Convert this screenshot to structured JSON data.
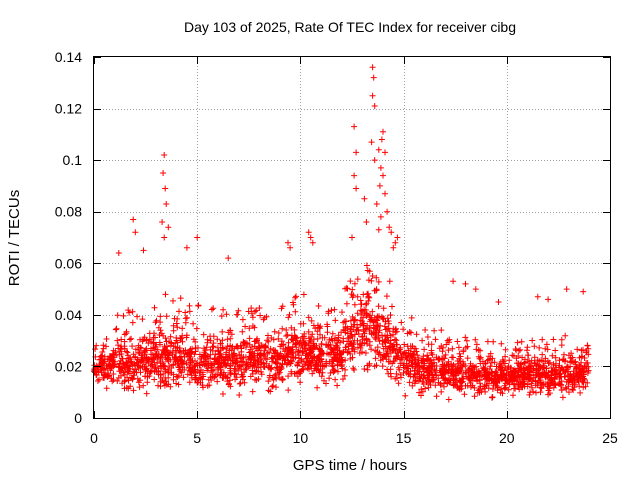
{
  "chart_data": {
    "type": "scatter",
    "title": "Day 103 of 2025, Rate Of TEC Index for receiver cibg",
    "xlabel": "GPS time / hours",
    "ylabel": "ROTI / TECUs",
    "xlim": [
      0,
      25
    ],
    "ylim": [
      0,
      0.14
    ],
    "x_ticks": [
      0,
      5,
      10,
      15,
      20,
      25
    ],
    "x_tick_labels": [
      "0",
      "5",
      "10",
      "15",
      "20",
      "25"
    ],
    "y_ticks": [
      0,
      0.02,
      0.04,
      0.06,
      0.08,
      0.1,
      0.12,
      0.14
    ],
    "y_tick_labels": [
      "0",
      "0.02",
      "0.04",
      "0.06",
      "0.08",
      "0.1",
      "0.12",
      "0.14"
    ],
    "grid": true,
    "marker": "+",
    "marker_color": "#ff0000",
    "x_range_of_data": [
      0,
      24
    ],
    "envelope": {
      "x": [
        0,
        1,
        2,
        3,
        4,
        5,
        6,
        7,
        8,
        9,
        10,
        11,
        12,
        13,
        14,
        15,
        16,
        17,
        18,
        19,
        20,
        21,
        22,
        23,
        24
      ],
      "low": [
        0.01,
        0.008,
        0.007,
        0.007,
        0.008,
        0.008,
        0.007,
        0.007,
        0.008,
        0.009,
        0.009,
        0.01,
        0.01,
        0.012,
        0.01,
        0.008,
        0.007,
        0.006,
        0.006,
        0.006,
        0.006,
        0.006,
        0.006,
        0.006,
        0.007
      ],
      "mid": [
        0.018,
        0.02,
        0.02,
        0.021,
        0.022,
        0.02,
        0.022,
        0.022,
        0.022,
        0.023,
        0.024,
        0.024,
        0.025,
        0.035,
        0.03,
        0.022,
        0.018,
        0.017,
        0.016,
        0.016,
        0.016,
        0.016,
        0.016,
        0.016,
        0.018
      ],
      "high": [
        0.03,
        0.04,
        0.045,
        0.05,
        0.048,
        0.045,
        0.042,
        0.042,
        0.045,
        0.045,
        0.05,
        0.045,
        0.05,
        0.06,
        0.06,
        0.045,
        0.035,
        0.035,
        0.032,
        0.03,
        0.03,
        0.03,
        0.032,
        0.032,
        0.03
      ]
    },
    "notable_points": [
      {
        "x": 1.9,
        "y": 0.077
      },
      {
        "x": 2.0,
        "y": 0.072
      },
      {
        "x": 3.4,
        "y": 0.102
      },
      {
        "x": 3.35,
        "y": 0.095
      },
      {
        "x": 3.45,
        "y": 0.089
      },
      {
        "x": 3.5,
        "y": 0.083
      },
      {
        "x": 3.3,
        "y": 0.076
      },
      {
        "x": 3.4,
        "y": 0.07
      },
      {
        "x": 3.6,
        "y": 0.074
      },
      {
        "x": 5.0,
        "y": 0.07
      },
      {
        "x": 2.4,
        "y": 0.065
      },
      {
        "x": 1.2,
        "y": 0.064
      },
      {
        "x": 4.5,
        "y": 0.066
      },
      {
        "x": 6.5,
        "y": 0.062
      },
      {
        "x": 9.4,
        "y": 0.068
      },
      {
        "x": 9.5,
        "y": 0.066
      },
      {
        "x": 10.4,
        "y": 0.072
      },
      {
        "x": 10.5,
        "y": 0.07
      },
      {
        "x": 10.6,
        "y": 0.068
      },
      {
        "x": 12.6,
        "y": 0.113
      },
      {
        "x": 12.7,
        "y": 0.103
      },
      {
        "x": 12.6,
        "y": 0.094
      },
      {
        "x": 12.7,
        "y": 0.089
      },
      {
        "x": 12.5,
        "y": 0.07
      },
      {
        "x": 13.1,
        "y": 0.085
      },
      {
        "x": 13.2,
        "y": 0.076
      },
      {
        "x": 13.5,
        "y": 0.136
      },
      {
        "x": 13.55,
        "y": 0.132
      },
      {
        "x": 13.5,
        "y": 0.125
      },
      {
        "x": 13.6,
        "y": 0.121
      },
      {
        "x": 13.45,
        "y": 0.107
      },
      {
        "x": 13.6,
        "y": 0.1
      },
      {
        "x": 13.8,
        "y": 0.104
      },
      {
        "x": 14.0,
        "y": 0.111
      },
      {
        "x": 13.95,
        "y": 0.108
      },
      {
        "x": 14.1,
        "y": 0.103
      },
      {
        "x": 13.9,
        "y": 0.097
      },
      {
        "x": 14.0,
        "y": 0.094
      },
      {
        "x": 13.85,
        "y": 0.09
      },
      {
        "x": 14.1,
        "y": 0.087
      },
      {
        "x": 13.7,
        "y": 0.083
      },
      {
        "x": 14.2,
        "y": 0.08
      },
      {
        "x": 13.9,
        "y": 0.078
      },
      {
        "x": 14.3,
        "y": 0.074
      },
      {
        "x": 14.4,
        "y": 0.072
      },
      {
        "x": 13.8,
        "y": 0.073
      },
      {
        "x": 14.6,
        "y": 0.068
      },
      {
        "x": 14.7,
        "y": 0.07
      },
      {
        "x": 14.5,
        "y": 0.066
      },
      {
        "x": 17.4,
        "y": 0.053
      },
      {
        "x": 18.0,
        "y": 0.052
      },
      {
        "x": 18.5,
        "y": 0.05
      },
      {
        "x": 19.6,
        "y": 0.045
      },
      {
        "x": 21.5,
        "y": 0.047
      },
      {
        "x": 22.0,
        "y": 0.046
      },
      {
        "x": 22.9,
        "y": 0.05
      },
      {
        "x": 23.7,
        "y": 0.049
      }
    ]
  }
}
